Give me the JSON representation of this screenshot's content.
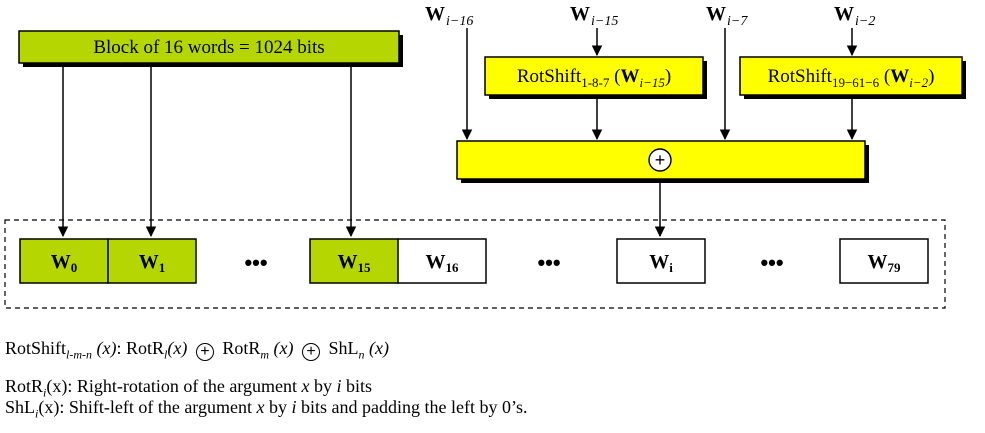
{
  "block": {
    "label": "Block of 16 words = 1024 bits"
  },
  "inputs": {
    "w_i16": {
      "base": "W",
      "sub": "i−16"
    },
    "w_i15": {
      "base": "W",
      "sub": "i−15"
    },
    "w_i7": {
      "base": "W",
      "sub": "i−7"
    },
    "w_i2": {
      "base": "W",
      "sub": "i−2"
    }
  },
  "rotshift_a": {
    "name": "RotShift",
    "params": "1-8-7",
    "arg_base": "W",
    "arg_sub": "i−15"
  },
  "rotshift_b": {
    "name": "RotShift",
    "params": "19−61−6",
    "arg_base": "W",
    "arg_sub": "i−2"
  },
  "xor_symbol": "+",
  "words": [
    {
      "base": "W",
      "sub": "0",
      "color": "#b5d600"
    },
    {
      "base": "W",
      "sub": "1",
      "color": "#b5d600"
    },
    {
      "base": "W",
      "sub": "15",
      "color": "#b5d600"
    },
    {
      "base": "W",
      "sub": "16",
      "color": "#ffffff"
    },
    {
      "base": "W",
      "sub": "i",
      "color": "#ffffff"
    },
    {
      "base": "W",
      "sub": "79",
      "color": "#ffffff"
    }
  ],
  "ellipsis": "•••",
  "legend": {
    "line1": {
      "name": "RotShift",
      "params": "l-m-n",
      "x": "(x)",
      "colon": ": ",
      "rotr": "RotR",
      "l": "l",
      "m": "m",
      "shl": "ShL",
      "n": "n"
    },
    "line2": {
      "rotr": "RotR",
      "i": "i",
      "text": "(x): Right-rotation of the argument ",
      "x": "x",
      "by": " by ",
      "bits": " bits"
    },
    "line3": {
      "shl": "ShL",
      "i": "i",
      "text": "(x): Shift-left of the argument ",
      "x": "x",
      "by": " by ",
      "rest": " bits and padding the left by 0’s."
    }
  },
  "colors": {
    "green": "#b5d600",
    "yellow": "#ffff00",
    "white": "#ffffff",
    "black": "#000000"
  }
}
